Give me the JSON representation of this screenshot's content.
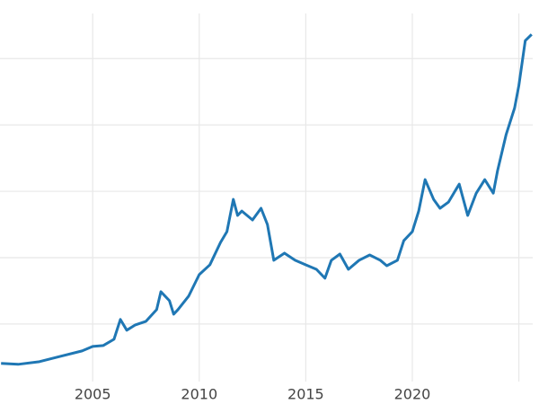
{
  "chart_data": {
    "type": "line",
    "x": [
      2000.7,
      2001.5,
      2002.5,
      2003.5,
      2004.5,
      2005,
      2005.5,
      2006,
      2006.3,
      2006.6,
      2007,
      2007.5,
      2008,
      2008.2,
      2008.6,
      2008.8,
      2009,
      2009.5,
      2010,
      2010.5,
      2011,
      2011.3,
      2011.6,
      2011.8,
      2012,
      2012.5,
      2012.9,
      2013.2,
      2013.5,
      2014,
      2014.5,
      2015,
      2015.5,
      2015.9,
      2016.2,
      2016.6,
      2017,
      2017.5,
      2018,
      2018.5,
      2018.8,
      2019.3,
      2019.6,
      2020,
      2020.3,
      2020.6,
      2021,
      2021.3,
      2021.7,
      2022.2,
      2022.6,
      2023,
      2023.4,
      2023.8,
      2024,
      2024.4,
      2024.8,
      2025,
      2025.3,
      2025.6
    ],
    "series": [
      {
        "color": "#1f77b4",
        "values": [
          203,
          196,
          216,
          257,
          297,
          331,
          338,
          385,
          534,
          453,
          493,
          520,
          608,
          743,
          676,
          574,
          608,
          709,
          872,
          946,
          1115,
          1196,
          1439,
          1318,
          1351,
          1284,
          1372,
          1250,
          980,
          1034,
          980,
          946,
          912,
          845,
          980,
          1027,
          912,
          980,
          1020,
          980,
          939,
          980,
          1128,
          1196,
          1351,
          1588,
          1439,
          1372,
          1419,
          1554,
          1318,
          1486,
          1588,
          1486,
          1655,
          1926,
          2128,
          2297,
          2635,
          2682
        ]
      }
    ],
    "xlim": [
      2000.65,
      2025.65
    ],
    "xticks": [
      2005,
      2010,
      2015,
      2020,
      2025
    ],
    "ylim": [
      100,
      2840
    ],
    "yticks": [
      500,
      1000,
      1500,
      2000,
      2500
    ],
    "grid": true
  }
}
